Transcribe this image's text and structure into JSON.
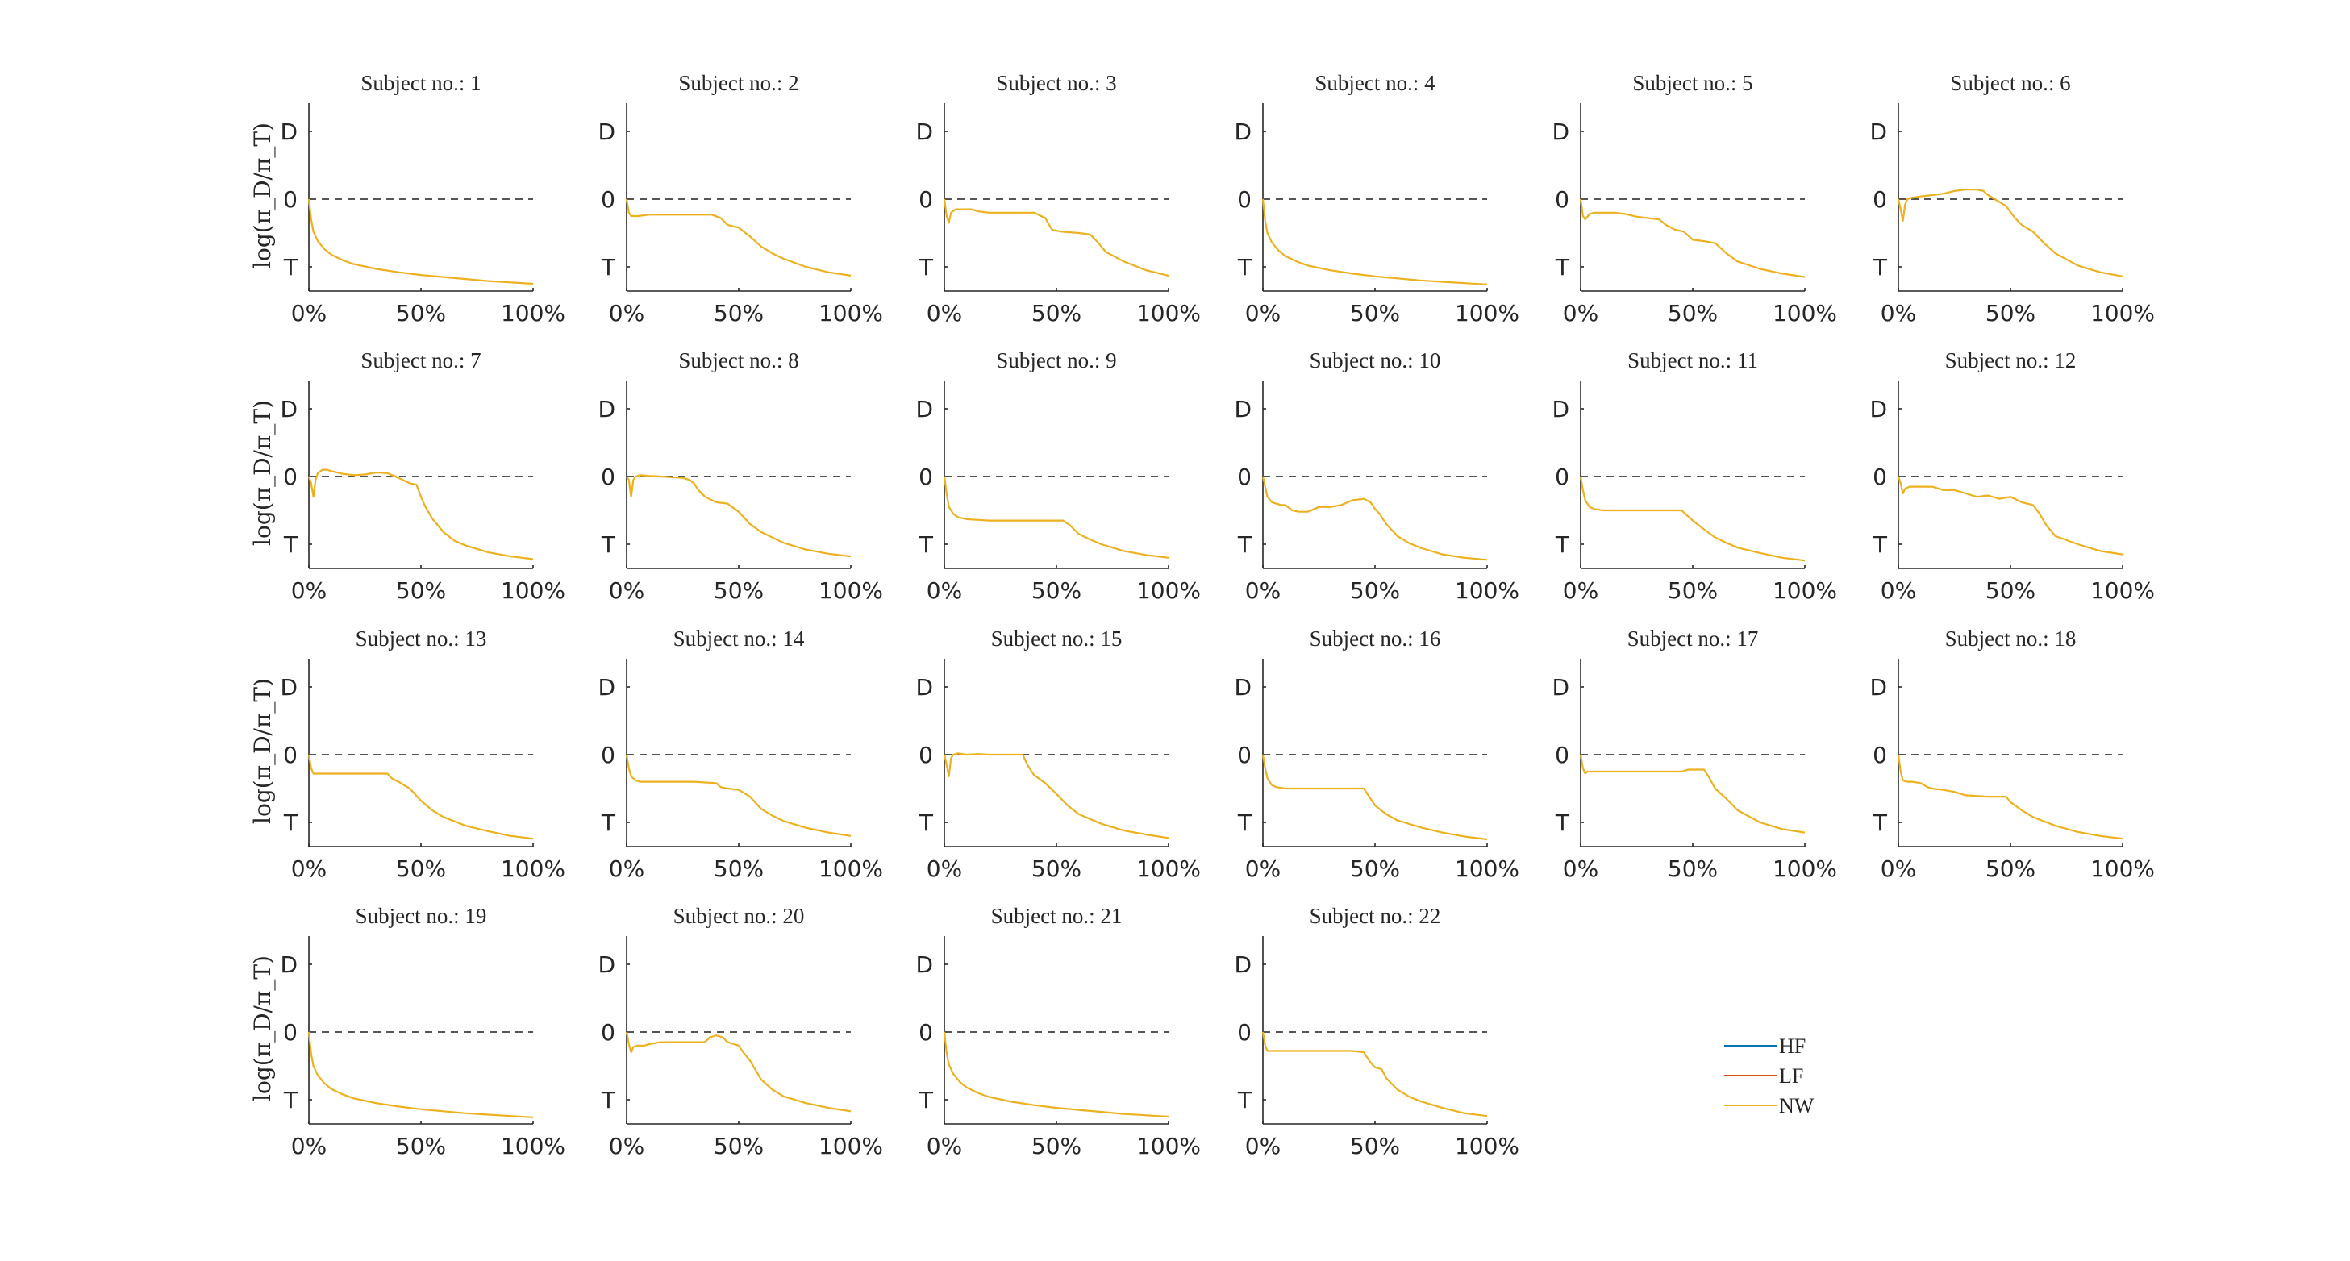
{
  "chart_data": {
    "type": "line",
    "subplot_title_prefix": "Subject no.: ",
    "ylabel": "log(π_D/π_T)",
    "yticks": [
      "D",
      "0",
      "T"
    ],
    "xticks": [
      "0%",
      "50%",
      "100%"
    ],
    "xlim": [
      0,
      100
    ],
    "ylim": [
      -1.35,
      1.4
    ],
    "reference_line": 0,
    "legend": {
      "placement": "bottom-right",
      "entries": [
        {
          "name": "HF",
          "color": "#0072BD"
        },
        {
          "name": "LF",
          "color": "#D95319"
        },
        {
          "name": "NW",
          "color": "#EDB120"
        }
      ]
    },
    "series_color": "#EDB120",
    "subjects": [
      {
        "subject": "1",
        "x": [
          0,
          1,
          2,
          4,
          7,
          10,
          15,
          20,
          30,
          40,
          50,
          60,
          70,
          80,
          90,
          100
        ],
        "y": [
          0,
          -0.3,
          -0.48,
          -0.62,
          -0.74,
          -0.82,
          -0.9,
          -0.96,
          -1.03,
          -1.08,
          -1.12,
          -1.15,
          -1.18,
          -1.21,
          -1.23,
          -1.25
        ]
      },
      {
        "subject": "2",
        "x": [
          0,
          1,
          2,
          3,
          5,
          10,
          20,
          30,
          38,
          42,
          45,
          50,
          55,
          60,
          65,
          70,
          80,
          90,
          100
        ],
        "y": [
          0,
          -0.2,
          -0.25,
          -0.25,
          -0.25,
          -0.23,
          -0.23,
          -0.23,
          -0.23,
          -0.28,
          -0.38,
          -0.42,
          -0.55,
          -0.7,
          -0.8,
          -0.88,
          -1.0,
          -1.08,
          -1.13
        ]
      },
      {
        "subject": "3",
        "x": [
          0,
          1,
          2,
          3,
          5,
          8,
          12,
          15,
          20,
          30,
          40,
          45,
          48,
          52,
          60,
          65,
          68,
          72,
          80,
          90,
          100
        ],
        "y": [
          0,
          -0.25,
          -0.35,
          -0.2,
          -0.15,
          -0.15,
          -0.15,
          -0.18,
          -0.2,
          -0.2,
          -0.2,
          -0.28,
          -0.45,
          -0.48,
          -0.5,
          -0.52,
          -0.62,
          -0.78,
          -0.92,
          -1.05,
          -1.13
        ]
      },
      {
        "subject": "4",
        "x": [
          0,
          1,
          2,
          4,
          7,
          10,
          15,
          20,
          30,
          40,
          50,
          60,
          70,
          80,
          90,
          100
        ],
        "y": [
          0,
          -0.32,
          -0.5,
          -0.64,
          -0.76,
          -0.84,
          -0.92,
          -0.98,
          -1.05,
          -1.1,
          -1.14,
          -1.17,
          -1.2,
          -1.22,
          -1.24,
          -1.26
        ]
      },
      {
        "subject": "5",
        "x": [
          0,
          1,
          2,
          4,
          6,
          10,
          15,
          20,
          25,
          30,
          35,
          38,
          42,
          46,
          50,
          55,
          60,
          65,
          70,
          80,
          90,
          100
        ],
        "y": [
          0,
          -0.25,
          -0.3,
          -0.22,
          -0.2,
          -0.2,
          -0.2,
          -0.22,
          -0.26,
          -0.28,
          -0.3,
          -0.38,
          -0.45,
          -0.48,
          -0.6,
          -0.62,
          -0.65,
          -0.8,
          -0.92,
          -1.03,
          -1.1,
          -1.15
        ]
      },
      {
        "subject": "6",
        "x": [
          0,
          1,
          2,
          3,
          4,
          6,
          10,
          15,
          20,
          25,
          30,
          35,
          38,
          40,
          43,
          48,
          52,
          55,
          60,
          65,
          70,
          80,
          90,
          100
        ],
        "y": [
          0,
          -0.15,
          -0.32,
          -0.08,
          0,
          0.02,
          0.04,
          0.06,
          0.08,
          0.12,
          0.14,
          0.14,
          0.12,
          0.06,
          0,
          -0.1,
          -0.28,
          -0.38,
          -0.48,
          -0.65,
          -0.8,
          -0.98,
          -1.08,
          -1.14
        ]
      },
      {
        "subject": "7",
        "x": [
          0,
          1,
          2,
          3,
          4,
          6,
          8,
          10,
          15,
          20,
          25,
          30,
          35,
          40,
          45,
          48,
          50,
          52,
          55,
          60,
          65,
          70,
          80,
          90,
          100
        ],
        "y": [
          0,
          -0.1,
          -0.3,
          -0.05,
          0.05,
          0.1,
          0.1,
          0.08,
          0.04,
          0.02,
          0.03,
          0.06,
          0.05,
          -0.02,
          -0.1,
          -0.12,
          -0.3,
          -0.45,
          -0.62,
          -0.82,
          -0.95,
          -1.02,
          -1.12,
          -1.18,
          -1.22
        ]
      },
      {
        "subject": "8",
        "x": [
          0,
          1,
          2,
          3,
          4,
          6,
          10,
          15,
          20,
          25,
          28,
          30,
          32,
          35,
          38,
          40,
          45,
          50,
          55,
          60,
          65,
          70,
          80,
          90,
          100
        ],
        "y": [
          0,
          -0.05,
          -0.3,
          -0.05,
          0,
          0.02,
          0.01,
          0,
          -0.01,
          -0.02,
          -0.05,
          -0.1,
          -0.2,
          -0.3,
          -0.35,
          -0.38,
          -0.4,
          -0.52,
          -0.7,
          -0.82,
          -0.9,
          -0.98,
          -1.08,
          -1.14,
          -1.18
        ]
      },
      {
        "subject": "9",
        "x": [
          0,
          1,
          2,
          4,
          6,
          10,
          15,
          20,
          30,
          40,
          50,
          53,
          56,
          60,
          65,
          70,
          80,
          90,
          100
        ],
        "y": [
          0,
          -0.25,
          -0.45,
          -0.55,
          -0.6,
          -0.63,
          -0.64,
          -0.65,
          -0.65,
          -0.65,
          -0.65,
          -0.65,
          -0.72,
          -0.85,
          -0.93,
          -1.0,
          -1.1,
          -1.16,
          -1.2
        ]
      },
      {
        "subject": "10",
        "x": [
          0,
          2,
          4,
          8,
          10,
          13,
          16,
          20,
          25,
          30,
          35,
          40,
          45,
          48,
          50,
          52,
          55,
          60,
          65,
          70,
          80,
          90,
          100
        ],
        "y": [
          0,
          -0.3,
          -0.38,
          -0.42,
          -0.42,
          -0.5,
          -0.52,
          -0.52,
          -0.45,
          -0.45,
          -0.42,
          -0.35,
          -0.33,
          -0.38,
          -0.48,
          -0.55,
          -0.7,
          -0.88,
          -0.98,
          -1.05,
          -1.15,
          -1.2,
          -1.23
        ]
      },
      {
        "subject": "11",
        "x": [
          0,
          1,
          2,
          4,
          6,
          10,
          20,
          30,
          40,
          45,
          50,
          55,
          60,
          65,
          70,
          80,
          90,
          100
        ],
        "y": [
          0,
          -0.2,
          -0.35,
          -0.45,
          -0.48,
          -0.5,
          -0.5,
          -0.5,
          -0.5,
          -0.5,
          -0.65,
          -0.78,
          -0.9,
          -0.98,
          -1.05,
          -1.13,
          -1.2,
          -1.24
        ]
      },
      {
        "subject": "12",
        "x": [
          0,
          1,
          2,
          3,
          5,
          10,
          15,
          20,
          25,
          30,
          35,
          40,
          45,
          50,
          55,
          60,
          63,
          66,
          70,
          80,
          90,
          100
        ],
        "y": [
          0,
          -0.1,
          -0.25,
          -0.18,
          -0.15,
          -0.15,
          -0.15,
          -0.2,
          -0.2,
          -0.25,
          -0.3,
          -0.28,
          -0.33,
          -0.3,
          -0.38,
          -0.42,
          -0.55,
          -0.72,
          -0.88,
          -1.0,
          -1.1,
          -1.15
        ]
      },
      {
        "subject": "13",
        "x": [
          0,
          1,
          2,
          3,
          5,
          10,
          20,
          30,
          35,
          37,
          40,
          45,
          50,
          55,
          60,
          70,
          80,
          90,
          100
        ],
        "y": [
          0,
          -0.2,
          -0.28,
          -0.28,
          -0.28,
          -0.28,
          -0.28,
          -0.28,
          -0.28,
          -0.35,
          -0.4,
          -0.5,
          -0.68,
          -0.82,
          -0.92,
          -1.05,
          -1.13,
          -1.2,
          -1.24
        ]
      },
      {
        "subject": "14",
        "x": [
          0,
          1,
          2,
          4,
          6,
          10,
          20,
          30,
          40,
          42,
          45,
          50,
          55,
          60,
          65,
          70,
          80,
          90,
          100
        ],
        "y": [
          0,
          -0.2,
          -0.32,
          -0.38,
          -0.4,
          -0.4,
          -0.4,
          -0.4,
          -0.42,
          -0.48,
          -0.5,
          -0.52,
          -0.62,
          -0.8,
          -0.9,
          -0.98,
          -1.08,
          -1.15,
          -1.2
        ]
      },
      {
        "subject": "15",
        "x": [
          0,
          1,
          2,
          3,
          4,
          6,
          10,
          15,
          20,
          25,
          30,
          35,
          37,
          40,
          45,
          50,
          55,
          60,
          65,
          70,
          80,
          90,
          100
        ],
        "y": [
          0,
          -0.15,
          -0.32,
          -0.05,
          0,
          0.02,
          0,
          0.01,
          0,
          0,
          0,
          0,
          -0.15,
          -0.3,
          -0.42,
          -0.58,
          -0.75,
          -0.88,
          -0.95,
          -1.02,
          -1.12,
          -1.18,
          -1.23
        ]
      },
      {
        "subject": "16",
        "x": [
          0,
          1,
          2,
          4,
          6,
          10,
          20,
          30,
          40,
          45,
          47,
          50,
          55,
          60,
          70,
          80,
          90,
          100
        ],
        "y": [
          0,
          -0.2,
          -0.35,
          -0.45,
          -0.48,
          -0.5,
          -0.5,
          -0.5,
          -0.5,
          -0.5,
          -0.6,
          -0.75,
          -0.88,
          -0.97,
          -1.07,
          -1.15,
          -1.21,
          -1.25
        ]
      },
      {
        "subject": "17",
        "x": [
          0,
          1,
          2,
          3,
          5,
          10,
          20,
          30,
          40,
          45,
          48,
          52,
          55,
          57,
          60,
          65,
          70,
          80,
          90,
          100
        ],
        "y": [
          0,
          -0.2,
          -0.28,
          -0.25,
          -0.25,
          -0.25,
          -0.25,
          -0.25,
          -0.25,
          -0.25,
          -0.22,
          -0.22,
          -0.22,
          -0.32,
          -0.5,
          -0.65,
          -0.82,
          -1.0,
          -1.1,
          -1.15
        ]
      },
      {
        "subject": "18",
        "x": [
          0,
          1,
          2,
          4,
          6,
          10,
          13,
          15,
          20,
          25,
          30,
          40,
          48,
          50,
          55,
          60,
          70,
          80,
          90,
          100
        ],
        "y": [
          0,
          -0.25,
          -0.38,
          -0.4,
          -0.4,
          -0.42,
          -0.48,
          -0.5,
          -0.52,
          -0.55,
          -0.6,
          -0.62,
          -0.62,
          -0.7,
          -0.82,
          -0.92,
          -1.05,
          -1.14,
          -1.2,
          -1.24
        ]
      },
      {
        "subject": "19",
        "x": [
          0,
          1,
          2,
          4,
          7,
          10,
          15,
          20,
          30,
          40,
          50,
          60,
          70,
          80,
          90,
          100
        ],
        "y": [
          0,
          -0.32,
          -0.5,
          -0.64,
          -0.76,
          -0.84,
          -0.92,
          -0.98,
          -1.05,
          -1.1,
          -1.14,
          -1.17,
          -1.2,
          -1.22,
          -1.24,
          -1.26
        ]
      },
      {
        "subject": "20",
        "x": [
          0,
          1,
          2,
          3,
          5,
          8,
          10,
          15,
          20,
          25,
          30,
          35,
          37,
          40,
          43,
          45,
          50,
          52,
          55,
          60,
          65,
          70,
          80,
          90,
          100
        ],
        "y": [
          0,
          -0.18,
          -0.3,
          -0.22,
          -0.2,
          -0.2,
          -0.18,
          -0.15,
          -0.15,
          -0.15,
          -0.15,
          -0.15,
          -0.08,
          -0.05,
          -0.08,
          -0.15,
          -0.2,
          -0.3,
          -0.42,
          -0.7,
          -0.85,
          -0.95,
          -1.05,
          -1.12,
          -1.17
        ]
      },
      {
        "subject": "21",
        "x": [
          0,
          1,
          2,
          4,
          7,
          10,
          15,
          20,
          30,
          40,
          50,
          60,
          70,
          80,
          90,
          100
        ],
        "y": [
          0,
          -0.3,
          -0.48,
          -0.62,
          -0.74,
          -0.82,
          -0.9,
          -0.96,
          -1.03,
          -1.08,
          -1.12,
          -1.15,
          -1.18,
          -1.21,
          -1.23,
          -1.25
        ]
      },
      {
        "subject": "22",
        "x": [
          0,
          1,
          2,
          3,
          5,
          10,
          20,
          30,
          40,
          45,
          48,
          50,
          53,
          55,
          60,
          65,
          70,
          80,
          90,
          100
        ],
        "y": [
          0,
          -0.2,
          -0.28,
          -0.28,
          -0.28,
          -0.28,
          -0.28,
          -0.28,
          -0.28,
          -0.3,
          -0.45,
          -0.52,
          -0.55,
          -0.68,
          -0.85,
          -0.95,
          -1.02,
          -1.12,
          -1.2,
          -1.24
        ]
      }
    ]
  }
}
